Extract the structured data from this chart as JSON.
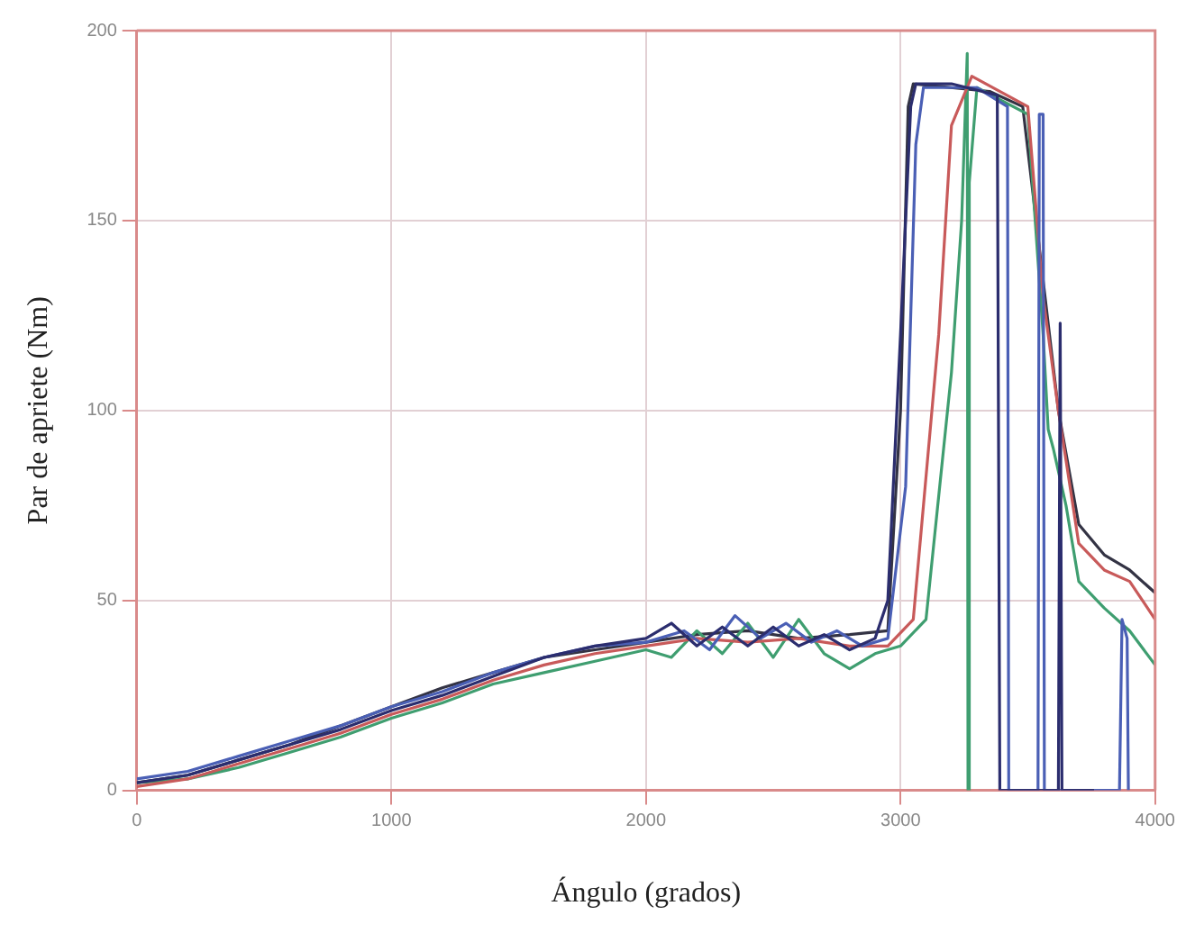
{
  "chart_data": {
    "type": "line",
    "xlabel": "Ángulo (grados)",
    "ylabel": "Par de apriete (Nm)",
    "xlim": [
      0,
      4000
    ],
    "xticks": [
      0,
      1000,
      2000,
      3000,
      4000
    ],
    "ylim": [
      0,
      200
    ],
    "yticks": [
      0,
      50,
      100,
      150,
      200
    ],
    "grid": true,
    "marker": "none",
    "line_style": "solid",
    "series": [
      {
        "color": "#2b2d6e",
        "x": [
          0,
          200,
          400,
          600,
          800,
          1000,
          1200,
          1400,
          1600,
          1800,
          2000,
          2100,
          2200,
          2300,
          2400,
          2500,
          2600,
          2700,
          2800,
          2900,
          2950,
          3000,
          3040,
          3060,
          3200,
          3380,
          3390,
          3620,
          3627,
          3634,
          3760
        ],
        "values": [
          2,
          4,
          8,
          12,
          16,
          21,
          25,
          30,
          35,
          38,
          40,
          44,
          38,
          43,
          38,
          43,
          38,
          41,
          37,
          40,
          50,
          120,
          180,
          186,
          186,
          183,
          0,
          0,
          123,
          0,
          0
        ]
      },
      {
        "color": "#4a5fb5",
        "x": [
          0,
          200,
          400,
          600,
          800,
          1000,
          1200,
          1400,
          1600,
          1800,
          2000,
          2150,
          2250,
          2350,
          2450,
          2550,
          2650,
          2750,
          2850,
          2950,
          3020,
          3060,
          3090,
          3300,
          3420,
          3425,
          3540,
          3545,
          3560,
          3565,
          3860,
          3870,
          3890,
          3895
        ],
        "values": [
          3,
          5,
          9,
          13,
          17,
          22,
          26,
          31,
          35,
          38,
          39,
          42,
          37,
          46,
          40,
          44,
          39,
          42,
          38,
          40,
          80,
          170,
          185,
          185,
          180,
          0,
          0,
          178,
          178,
          0,
          0,
          45,
          40,
          0
        ]
      },
      {
        "color": "#c85a5a",
        "x": [
          0,
          200,
          400,
          600,
          800,
          1000,
          1200,
          1400,
          1600,
          1800,
          2000,
          2200,
          2400,
          2600,
          2800,
          2950,
          3050,
          3150,
          3200,
          3280,
          3500,
          3560,
          3620,
          3700,
          3800,
          3900,
          4000
        ],
        "values": [
          1,
          3,
          7,
          11,
          15,
          20,
          24,
          29,
          33,
          36,
          38,
          40,
          39,
          40,
          38,
          38,
          45,
          120,
          175,
          188,
          180,
          130,
          100,
          65,
          58,
          55,
          45
        ]
      },
      {
        "color": "#3f9e70",
        "x": [
          0,
          200,
          400,
          600,
          800,
          1000,
          1200,
          1400,
          1600,
          1800,
          2000,
          2100,
          2200,
          2300,
          2400,
          2500,
          2600,
          2700,
          2800,
          2900,
          3000,
          3100,
          3200,
          3240,
          3262,
          3265,
          3270,
          3300,
          3500,
          3560,
          3580,
          3600,
          3650,
          3700,
          3800,
          3900,
          4000
        ],
        "values": [
          2,
          3,
          6,
          10,
          14,
          19,
          23,
          28,
          31,
          34,
          37,
          35,
          42,
          36,
          44,
          35,
          45,
          36,
          32,
          36,
          38,
          45,
          110,
          150,
          194,
          0,
          160,
          185,
          178,
          120,
          95,
          90,
          75,
          55,
          48,
          42,
          33
        ]
      },
      {
        "color": "#333344",
        "x": [
          0,
          200,
          400,
          600,
          800,
          1000,
          1200,
          1400,
          1600,
          1800,
          2000,
          2200,
          2400,
          2600,
          2800,
          2950,
          3000,
          3030,
          3050,
          3350,
          3480,
          3550,
          3620,
          3700,
          3800,
          3900,
          4000
        ],
        "values": [
          2,
          4,
          8,
          12,
          17,
          22,
          27,
          31,
          35,
          37,
          39,
          41,
          42,
          40,
          41,
          42,
          100,
          180,
          186,
          184,
          180,
          140,
          100,
          70,
          62,
          58,
          52
        ]
      }
    ]
  }
}
